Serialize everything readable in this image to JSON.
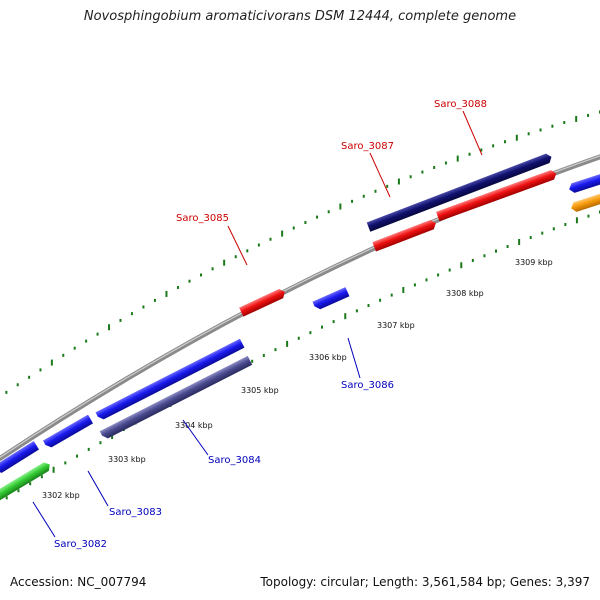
{
  "title": "Novosphingobium aromaticivorans DSM 12444, complete genome",
  "footer": {
    "accession": "Accession: NC_007794",
    "summary": "Topology: circular; Length: 3,561,584 bp; Genes: 3,397"
  },
  "colors": {
    "backbone": "#8a8a8a",
    "tick": "#1a7a1a",
    "plus_strand_label": "#cc0000",
    "minus_strand_label": "#0000bb"
  },
  "kbp_labels": [
    "3302 kbp",
    "3303 kbp",
    "3304 kbp",
    "3305 kbp",
    "3306 kbp",
    "3307 kbp",
    "3308 kbp",
    "3309 kbp"
  ],
  "genes": [
    {
      "name": "Saro_3082",
      "label_color": "#0000bb"
    },
    {
      "name": "Saro_3083",
      "label_color": "#0000bb"
    },
    {
      "name": "Saro_3084",
      "label_color": "#0000bb"
    },
    {
      "name": "Saro_3085",
      "label_color": "#cc0000"
    },
    {
      "name": "Saro_3086",
      "label_color": "#0000bb"
    },
    {
      "name": "Saro_3087",
      "label_color": "#cc0000"
    },
    {
      "name": "Saro_3088",
      "label_color": "#cc0000"
    }
  ],
  "features": [
    {
      "name": "green-feature",
      "color": "#33cc33"
    },
    {
      "name": "blue-feature",
      "color": "#1a1aee"
    },
    {
      "name": "slate-feature",
      "color": "#4a4a90"
    },
    {
      "name": "red-feature",
      "color": "#ee1111"
    },
    {
      "name": "navy-feature",
      "color": "#10106e"
    },
    {
      "name": "orange-feature",
      "color": "#f59a0a"
    }
  ]
}
